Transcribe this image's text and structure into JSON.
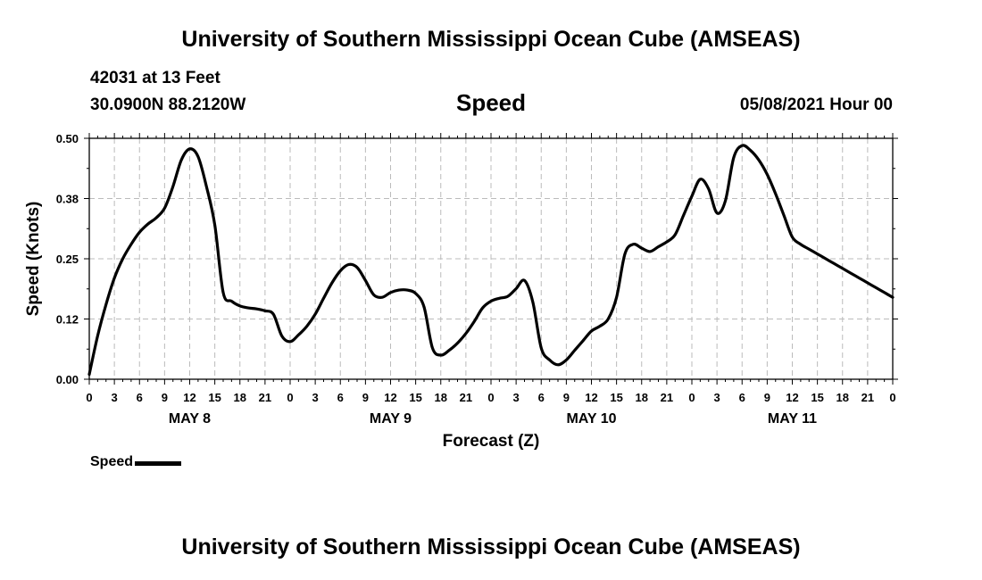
{
  "header": {
    "title": "University of Southern Mississippi Ocean Cube (AMSEAS)",
    "station": "42031 at 13 Feet",
    "coordinates": "30.0900N  88.2120W",
    "plot_title": "Speed",
    "datetime": "05/08/2021 Hour 00"
  },
  "footer": {
    "title": "University of Southern Mississippi Ocean Cube (AMSEAS)"
  },
  "legend": {
    "label": "Speed"
  },
  "chart_data": {
    "type": "line",
    "title": "Speed",
    "xlabel": "Forecast (Z)",
    "ylabel": "Speed (Knots)",
    "ylim": [
      0,
      0.5
    ],
    "xlim": [
      0,
      96
    ],
    "y_ticks": [
      "0.00",
      "0.12",
      "0.25",
      "0.38",
      "0.50"
    ],
    "x_tick_labels": [
      "0",
      "3",
      "6",
      "9",
      "12",
      "15",
      "18",
      "21",
      "0",
      "3",
      "6",
      "9",
      "12",
      "15",
      "18",
      "21",
      "0",
      "3",
      "6",
      "9",
      "12",
      "15",
      "18",
      "21",
      "0",
      "3",
      "6",
      "9",
      "12",
      "15",
      "18",
      "21",
      "0"
    ],
    "day_labels": [
      {
        "hour": 12,
        "label": "MAY 8"
      },
      {
        "hour": 36,
        "label": "MAY 9"
      },
      {
        "hour": 60,
        "label": "MAY 10"
      },
      {
        "hour": 84,
        "label": "MAY 11"
      }
    ],
    "grid": true,
    "series": [
      {
        "name": "Speed",
        "color": "#000000",
        "x": [
          0,
          1,
          2,
          3,
          4,
          5,
          6,
          7,
          8,
          9,
          10,
          11,
          12,
          13,
          14,
          15,
          16,
          17,
          18,
          19,
          20,
          21,
          22,
          23,
          24,
          25,
          26,
          27,
          28,
          29,
          30,
          31,
          32,
          33,
          34,
          35,
          36,
          37,
          38,
          39,
          40,
          41,
          42,
          43,
          44,
          45,
          46,
          47,
          48,
          49,
          50,
          51,
          52,
          53,
          54,
          55,
          56,
          57,
          58,
          59,
          60,
          61,
          62,
          63,
          64,
          65,
          66,
          67,
          68,
          69,
          70,
          71,
          72,
          73,
          74,
          75,
          76,
          77,
          78,
          79,
          80,
          81,
          82,
          83,
          84,
          85,
          86,
          87,
          88,
          89,
          90,
          91,
          92,
          93,
          94,
          95,
          96
        ],
        "values": [
          0.01,
          0.09,
          0.155,
          0.21,
          0.25,
          0.28,
          0.305,
          0.322,
          0.335,
          0.355,
          0.4,
          0.455,
          0.478,
          0.462,
          0.4,
          0.32,
          0.18,
          0.162,
          0.152,
          0.148,
          0.146,
          0.142,
          0.135,
          0.09,
          0.078,
          0.092,
          0.11,
          0.135,
          0.168,
          0.2,
          0.225,
          0.238,
          0.232,
          0.205,
          0.175,
          0.17,
          0.18,
          0.185,
          0.185,
          0.178,
          0.15,
          0.065,
          0.05,
          0.06,
          0.075,
          0.095,
          0.12,
          0.148,
          0.162,
          0.168,
          0.172,
          0.188,
          0.205,
          0.16,
          0.065,
          0.04,
          0.03,
          0.04,
          0.06,
          0.08,
          0.1,
          0.11,
          0.125,
          0.17,
          0.26,
          0.28,
          0.272,
          0.265,
          0.275,
          0.285,
          0.3,
          0.34,
          0.38,
          0.415,
          0.395,
          0.345,
          0.37,
          0.46,
          0.485,
          0.475,
          0.455,
          0.425,
          0.385,
          0.34,
          0.295,
          0.28,
          0.27,
          0.26,
          0.25,
          0.24,
          0.23,
          0.22,
          0.21,
          0.2,
          0.19,
          0.18,
          0.17
        ]
      }
    ]
  }
}
